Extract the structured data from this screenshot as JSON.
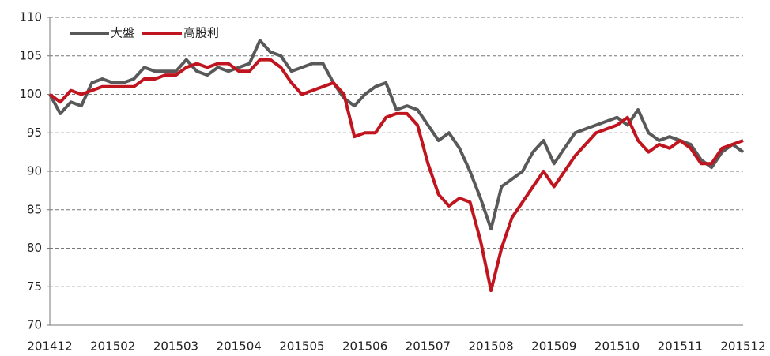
{
  "chart_data": {
    "type": "line",
    "categories": [
      "201412",
      null,
      null,
      null,
      null,
      null,
      "201502",
      null,
      null,
      null,
      null,
      null,
      "201503",
      null,
      null,
      null,
      null,
      null,
      "201504",
      null,
      null,
      null,
      null,
      null,
      "201505",
      null,
      null,
      null,
      null,
      null,
      "201506",
      null,
      null,
      null,
      null,
      null,
      "201507",
      null,
      null,
      null,
      null,
      null,
      "201508",
      null,
      null,
      null,
      null,
      null,
      "201509",
      null,
      null,
      null,
      null,
      null,
      "201510",
      null,
      null,
      null,
      null,
      null,
      "201511",
      null,
      null,
      null,
      null,
      null,
      "201512"
    ],
    "series": [
      {
        "name": "大盤",
        "color": "#595959",
        "values": [
          100,
          97.5,
          99,
          98.5,
          101.5,
          102,
          101.5,
          101.5,
          102,
          103.5,
          103,
          103,
          103,
          104.5,
          103,
          102.5,
          103.5,
          103,
          103.5,
          104,
          107,
          105.5,
          105,
          103,
          103.5,
          104,
          104,
          101.5,
          99.5,
          98.5,
          100,
          101,
          101.5,
          98,
          98.5,
          98,
          96,
          94,
          95,
          93,
          90,
          86.5,
          82.5,
          88,
          89,
          90,
          92.5,
          94,
          91,
          93,
          95,
          95.5,
          96,
          96.5,
          97,
          96,
          98,
          95,
          94,
          94.5,
          94,
          93.5,
          91.5,
          90.5,
          92.5,
          93.5,
          92.5
        ]
      },
      {
        "name": "高股利",
        "color": "#c0141e",
        "values": [
          100,
          99,
          100.5,
          100,
          100.5,
          101,
          101,
          101,
          101,
          102,
          102,
          102.5,
          102.5,
          103.5,
          104,
          103.5,
          104,
          104,
          103,
          103,
          104.5,
          104.5,
          103.5,
          101.5,
          100,
          100.5,
          101,
          101.5,
          100,
          94.5,
          95,
          95,
          97,
          97.5,
          97.5,
          96,
          91,
          87,
          85.5,
          86.5,
          86,
          81,
          74.5,
          80,
          84,
          86,
          88,
          90,
          88,
          90,
          92,
          93.5,
          95,
          95.5,
          96,
          97,
          94,
          92.5,
          93.5,
          93,
          94,
          93,
          91,
          91,
          93,
          93.5,
          94
        ]
      }
    ],
    "ylim": [
      70,
      110
    ],
    "yticks": [
      70,
      75,
      80,
      85,
      90,
      95,
      100,
      105,
      110
    ],
    "grid": true,
    "legend": "top-left"
  }
}
